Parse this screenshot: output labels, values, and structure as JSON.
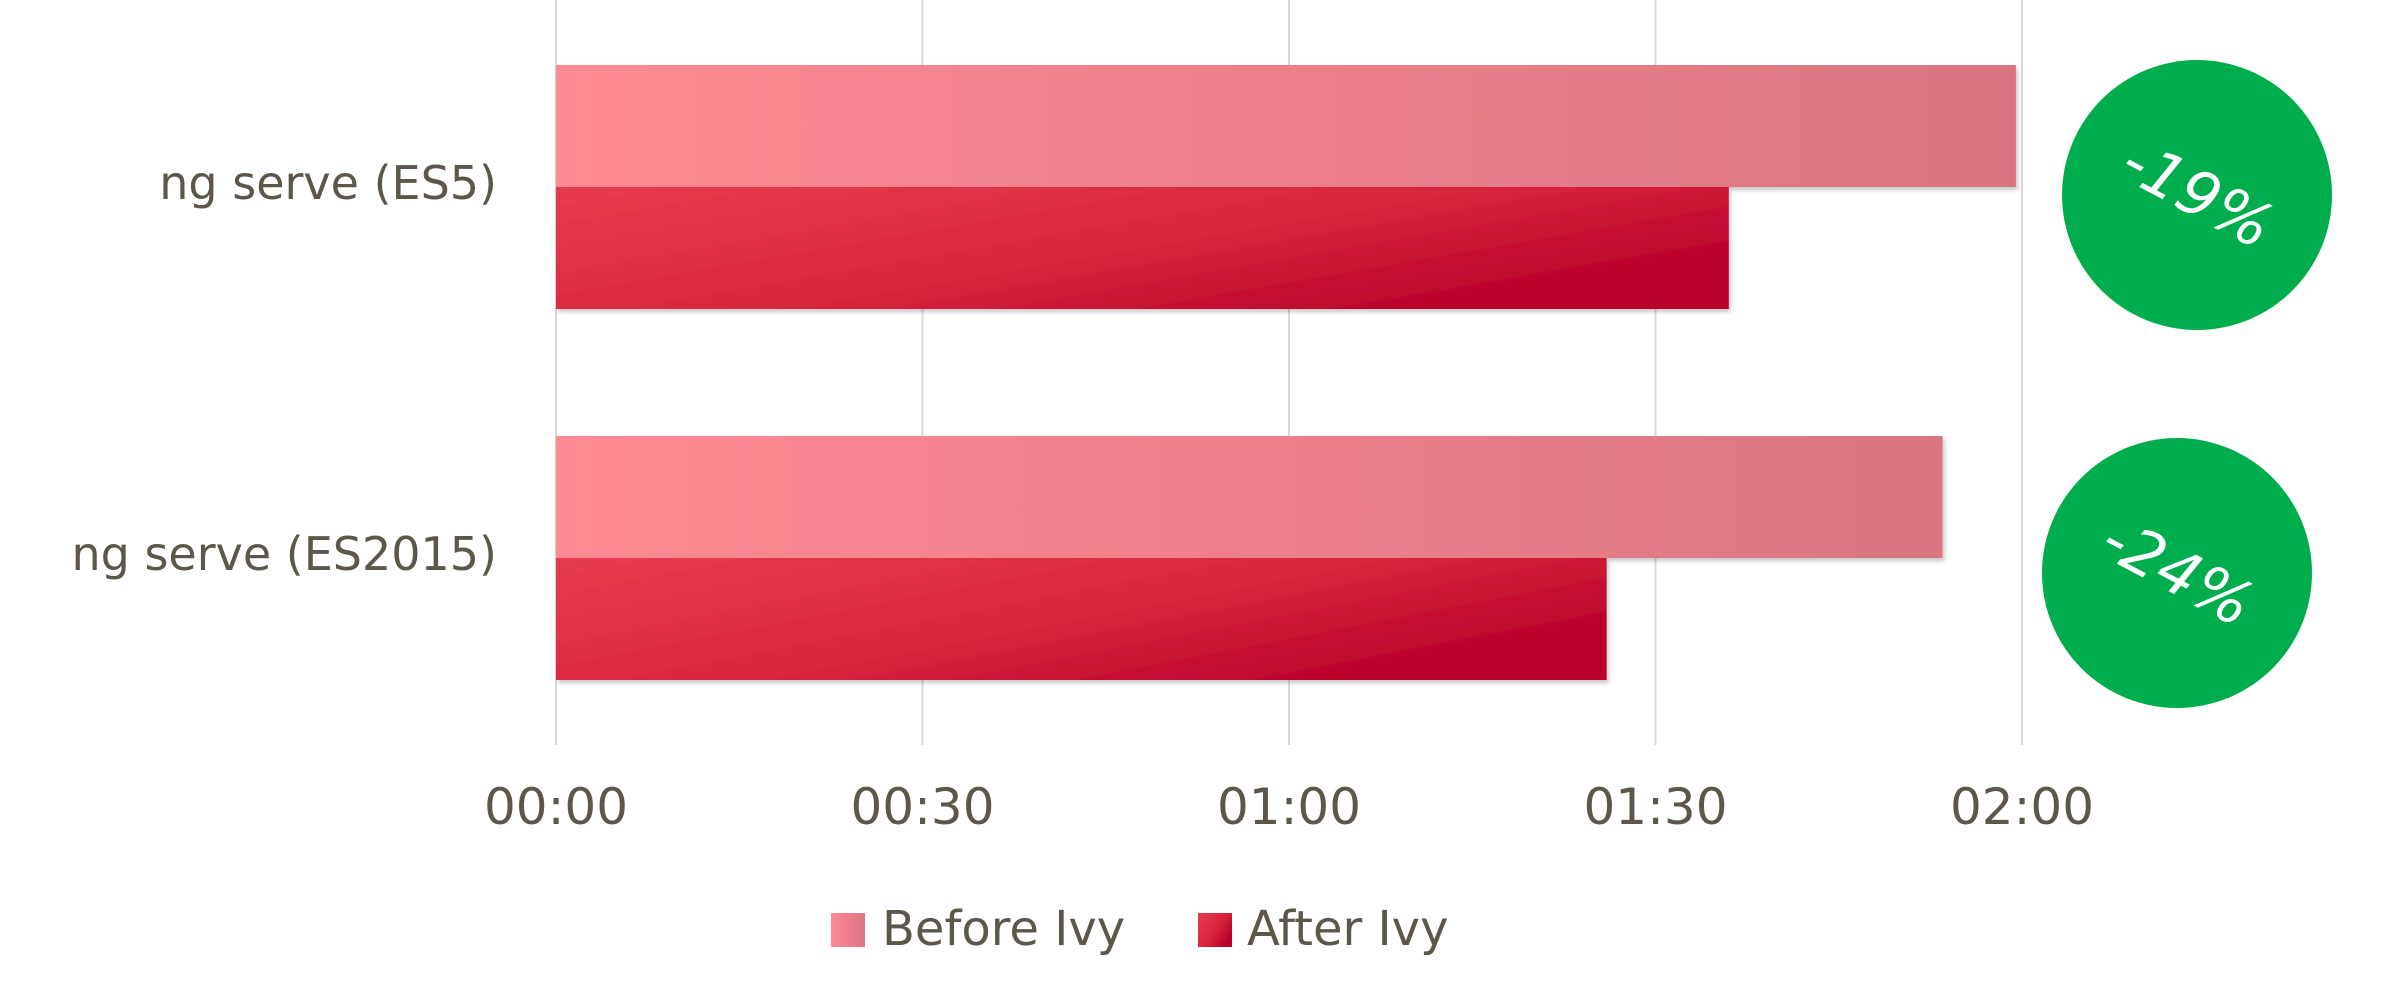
{
  "chart_data": {
    "type": "bar",
    "orientation": "horizontal",
    "title": "",
    "xlabel": "",
    "ylabel": "",
    "categories": [
      "ng serve (ES5)",
      "ng serve (ES2015)"
    ],
    "x_ticks": [
      "00:00",
      "00:30",
      "01:00",
      "01:30",
      "02:00"
    ],
    "xlim_seconds": [
      0,
      120
    ],
    "series": [
      {
        "name": "Before Ivy",
        "values_seconds": [
          119.5,
          113.5
        ],
        "values": [
          "01:59",
          "01:53"
        ],
        "color": "#ff8a93"
      },
      {
        "name": "After Ivy",
        "values_seconds": [
          96,
          86
        ],
        "values": [
          "01:36",
          "01:26"
        ],
        "color": "#e0243f"
      }
    ],
    "annotations": [
      {
        "category": "ng serve (ES5)",
        "text": "-19%",
        "color": "#00ad4c"
      },
      {
        "category": "ng serve (ES2015)",
        "text": "-24%",
        "color": "#00ad4c"
      }
    ],
    "grid": true,
    "legend": "bottom"
  }
}
